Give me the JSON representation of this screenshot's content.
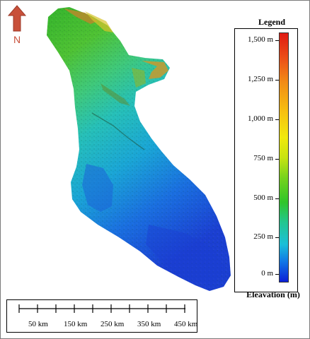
{
  "north_arrow": {
    "label": "N",
    "icon": "north-arrow-icon",
    "color": "#c8503a"
  },
  "legend": {
    "title": "Legend",
    "caption": "Eleavation (m)",
    "ticks": [
      "1,500 m",
      "1,250 m",
      "1,000 m",
      "750 m",
      "500 m",
      "250 m",
      "0 m"
    ],
    "colors": [
      "#0b1fd6",
      "#1bbfd9",
      "#2fc52a",
      "#f1e90c",
      "#f28d16",
      "#e01a13"
    ]
  },
  "scale_bar": {
    "labels": [
      "50 km",
      "150 km",
      "250 km",
      "350 km",
      "450 km"
    ]
  },
  "map": {
    "content": "elevation-raster"
  }
}
